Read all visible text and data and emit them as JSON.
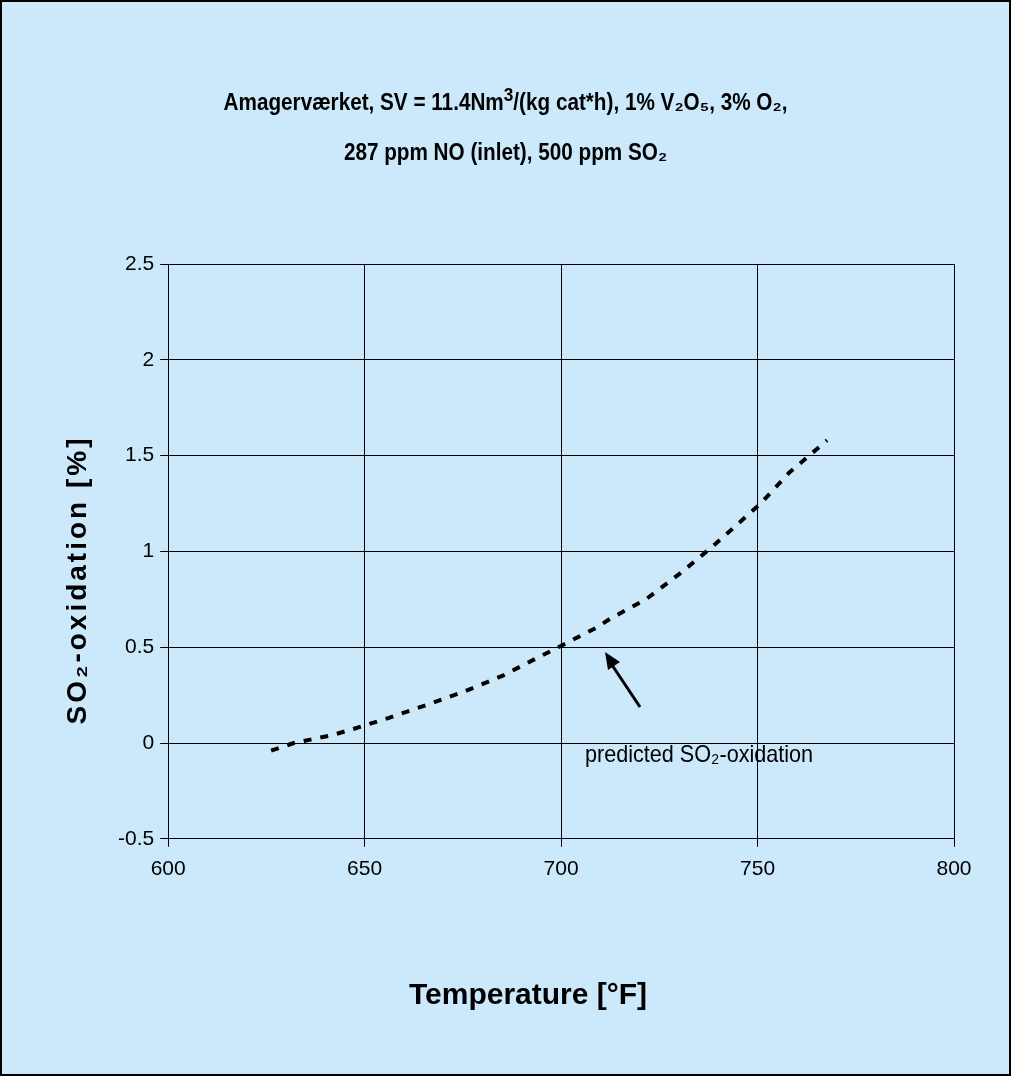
{
  "chart_data": {
    "type": "line",
    "title": "Amagerværket,  SV = 11.4Nm$^{3}$/(kg cat*h), 1% V₂O₅, 3% O₂,\n287 ppm NO (inlet),  500 ppm SO₂",
    "xlabel": "Temperature [°F]",
    "ylabel": "SO₂-oxidation  [%]",
    "xlim": [
      600,
      800
    ],
    "xticks": [
      600,
      650,
      700,
      750,
      800
    ],
    "ylim": [
      -0.5,
      2.5
    ],
    "yticks": [
      -0.5,
      0,
      0.5,
      1,
      1.5,
      2,
      2.5
    ],
    "grid": true,
    "legend": false,
    "marker": "none",
    "line_style": "dashed",
    "series": [
      {
        "color": "#000000",
        "x": [
          626.2,
          632,
          641.5,
          646.6,
          656,
          665.9,
          675.5,
          685,
          694.5,
          699.3,
          708.8,
          712.6,
          721.6,
          730.6,
          738.8,
          750.8,
          758,
          767.7
        ],
        "values": [
          -0.04,
          0,
          0.04,
          0.07,
          0.13,
          0.2,
          0.27,
          0.35,
          0.45,
          0.5,
          0.6,
          0.65,
          0.75,
          0.89,
          1.03,
          1.25,
          1.41,
          1.58
        ]
      }
    ],
    "annotations": [
      "predicted SO₂-oxidation"
    ]
  }
}
